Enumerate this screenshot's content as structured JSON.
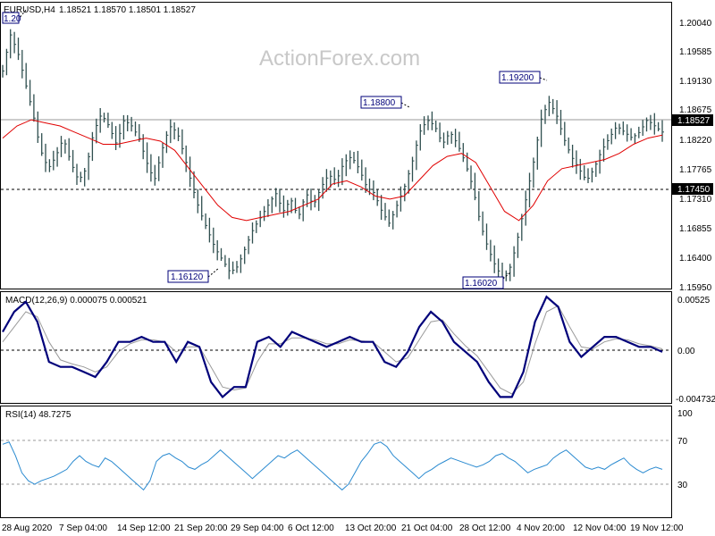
{
  "symbol": "EURUSD,H4",
  "ohlc": "1.18521 1.18570 1.18501 1.18527",
  "watermark": "ActionForex.com",
  "colors": {
    "candle": "#2f4f4f",
    "ma": "#e00000",
    "macd": "#00007a",
    "signal": "#9a9a9a",
    "rsi": "#2a8ad0",
    "frame": "#000000"
  },
  "chart_data": [
    {
      "type": "line",
      "title": "EURUSD,H4",
      "ylim": [
        1.1595,
        1.204
      ],
      "y_ticks": [
        "1.20040",
        "1.19585",
        "1.19130",
        "1.18675",
        "1.18220",
        "1.17765",
        "1.17310",
        "1.16855",
        "1.16400",
        "1.15950"
      ],
      "x_ticks": [
        "28 Aug 2020",
        "7 Sep 04:00",
        "14 Sep 12:00",
        "21 Sep 20:00",
        "29 Sep 04:00",
        "6 Oct 12:00",
        "13 Oct 20:00",
        "21 Oct 04:00",
        "28 Oct 12:00",
        "4 Nov 20:00",
        "12 Nov 04:00",
        "19 Nov 12:00"
      ],
      "price_path": [
        1.195,
        1.201,
        1.198,
        1.193,
        1.188,
        1.182,
        1.179,
        1.181,
        1.184,
        1.18,
        1.177,
        1.179,
        1.185,
        1.188,
        1.186,
        1.183,
        1.187,
        1.186,
        1.184,
        1.18,
        1.177,
        1.182,
        1.186,
        1.185,
        1.181,
        1.176,
        1.172,
        1.169,
        1.166,
        1.164,
        1.162,
        1.163,
        1.166,
        1.169,
        1.171,
        1.173,
        1.175,
        1.172,
        1.174,
        1.171,
        1.175,
        1.173,
        1.176,
        1.178,
        1.177,
        1.18,
        1.181,
        1.179,
        1.176,
        1.175,
        1.172,
        1.17,
        1.173,
        1.176,
        1.18,
        1.185,
        1.187,
        1.186,
        1.183,
        1.185,
        1.183,
        1.18,
        1.176,
        1.17,
        1.166,
        1.163,
        1.161,
        1.163,
        1.168,
        1.174,
        1.18,
        1.187,
        1.19,
        1.188,
        1.184,
        1.181,
        1.179,
        1.177,
        1.179,
        1.182,
        1.184,
        1.186,
        1.185,
        1.184,
        1.185,
        1.187,
        1.186,
        1.185
      ],
      "ma_path": [
        1.184,
        1.186,
        1.187,
        1.1865,
        1.186,
        1.185,
        1.184,
        1.183,
        1.183,
        1.1835,
        1.184,
        1.1835,
        1.182,
        1.179,
        1.176,
        1.173,
        1.171,
        1.1705,
        1.171,
        1.1715,
        1.172,
        1.173,
        1.174,
        1.1765,
        1.177,
        1.176,
        1.1745,
        1.174,
        1.1745,
        1.177,
        1.1795,
        1.181,
        1.1815,
        1.18,
        1.176,
        1.172,
        1.1705,
        1.173,
        1.177,
        1.179,
        1.1795,
        1.18,
        1.1805,
        1.1815,
        1.183,
        1.184,
        1.1845
      ],
      "levels": [
        {
          "label": "1.18527",
          "value": 1.18527,
          "style": "solid"
        },
        {
          "label": "1.17450",
          "value": 1.1745,
          "style": "dashed"
        }
      ],
      "annotations": [
        {
          "label": "1.20",
          "value": 1.2
        },
        {
          "label": "1.16120",
          "value": 1.1612
        },
        {
          "label": "1.18800",
          "value": 1.188
        },
        {
          "label": "1.19200",
          "value": 1.192
        },
        {
          "label": "1.16020",
          "value": 1.1602
        }
      ]
    },
    {
      "type": "line",
      "title": "MACD(12,26,9) 0.000075 0.000521",
      "ylim": [
        -0.004732,
        0.00525
      ],
      "y_ticks": [
        "0.00525",
        "0.00",
        "-0.004732"
      ],
      "macd": [
        0.002,
        0.004,
        0.005,
        0.003,
        -0.001,
        -0.0015,
        -0.0015,
        -0.002,
        -0.0025,
        -0.001,
        0.001,
        0.001,
        0.0015,
        0.001,
        0.001,
        -0.001,
        0.001,
        0.0005,
        -0.003,
        -0.0045,
        -0.0035,
        -0.0035,
        0.001,
        0.0015,
        0.0005,
        0.002,
        0.0015,
        0.001,
        0.0005,
        0.001,
        0.0015,
        0.001,
        0.001,
        -0.001,
        -0.0015,
        0.0,
        0.0025,
        0.004,
        0.003,
        0.001,
        0.0,
        -0.001,
        -0.003,
        -0.0045,
        -0.0045,
        -0.002,
        0.003,
        0.0055,
        0.0045,
        0.001,
        -0.0005,
        0.0005,
        0.0015,
        0.0015,
        0.001,
        0.0005,
        0.0005,
        0.0
      ],
      "signal": [
        0.001,
        0.0025,
        0.004,
        0.0035,
        0.001,
        -0.0008,
        -0.0012,
        -0.0015,
        -0.002,
        -0.0015,
        0.0,
        0.0008,
        0.0012,
        0.0012,
        0.001,
        0.0,
        0.0005,
        0.0005,
        -0.0015,
        -0.0035,
        -0.0038,
        -0.0036,
        -0.001,
        0.0008,
        0.0008,
        0.0014,
        0.0014,
        0.0012,
        0.0008,
        0.0008,
        0.0012,
        0.0011,
        0.001,
        0.0,
        -0.001,
        -0.0006,
        0.0012,
        0.003,
        0.0032,
        0.0018,
        0.0006,
        -0.0004,
        -0.002,
        -0.0036,
        -0.0042,
        -0.003,
        0.0008,
        0.004,
        0.0046,
        0.0025,
        0.0005,
        0.0003,
        0.001,
        0.0013,
        0.0012,
        0.0008,
        0.0006,
        0.0003
      ]
    },
    {
      "type": "line",
      "title": "RSI(14) 48.7275",
      "ylim": [
        10,
        100
      ],
      "y_ticks": [
        "100",
        "70",
        "30"
      ],
      "levels": [
        70,
        30
      ],
      "rsi": [
        70,
        72,
        60,
        45,
        38,
        35,
        38,
        40,
        42,
        45,
        48,
        55,
        60,
        55,
        52,
        50,
        58,
        55,
        50,
        45,
        40,
        35,
        30,
        38,
        55,
        60,
        62,
        58,
        55,
        50,
        48,
        52,
        55,
        60,
        65,
        60,
        55,
        50,
        45,
        40,
        45,
        50,
        55,
        60,
        58,
        62,
        65,
        60,
        55,
        50,
        45,
        40,
        35,
        30,
        35,
        45,
        55,
        62,
        70,
        72,
        68,
        60,
        55,
        50,
        45,
        40,
        45,
        48,
        52,
        55,
        58,
        56,
        54,
        52,
        50,
        52,
        55,
        60,
        62,
        58,
        55,
        50,
        45,
        48,
        50,
        52,
        58,
        62,
        65,
        60,
        55,
        50,
        48,
        50,
        48,
        52,
        55,
        58,
        52,
        48,
        45,
        48,
        50,
        48
      ]
    }
  ]
}
